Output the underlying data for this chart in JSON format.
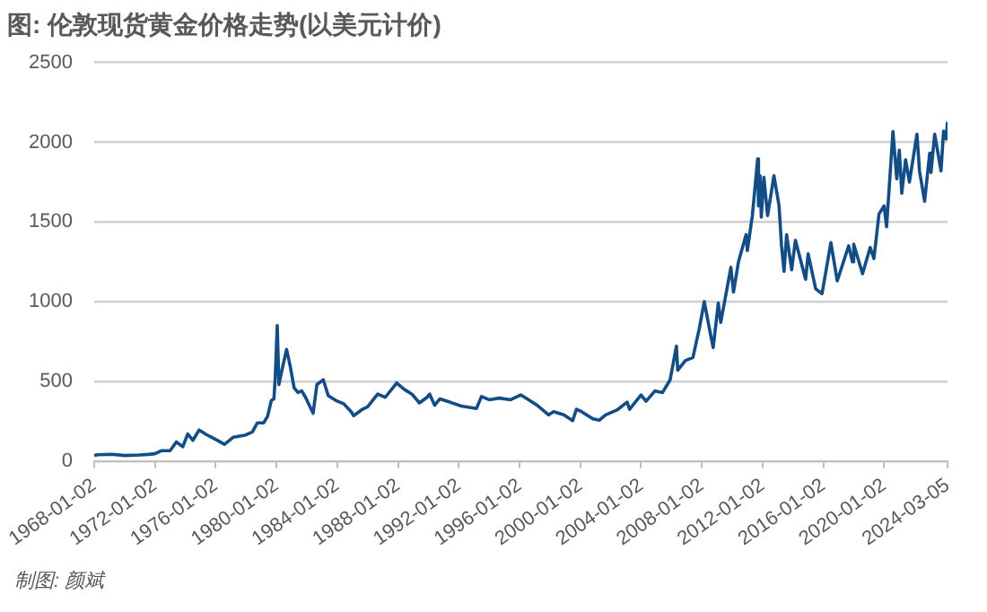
{
  "chart_data": {
    "type": "line",
    "title": "图: 伦敦现货黄金价格走势(以美元计价)",
    "annotations": [
      "制图: 颜斌"
    ],
    "x": [
      "1968-01-02",
      "1968-04",
      "1969-03",
      "1970-01",
      "1971-01",
      "1971-08",
      "1972-01",
      "1972-06",
      "1973-01",
      "1973-06",
      "1973-11",
      "1974-03",
      "1974-07",
      "1974-12",
      "1975-06",
      "1975-12",
      "1976-08",
      "1977-03",
      "1977-12",
      "1978-06",
      "1978-10",
      "1979-03",
      "1979-06",
      "1979-09",
      "1979-11",
      "1979-12",
      "1980-01-21",
      "1980-03",
      "1980-04",
      "1980-09",
      "1980-12",
      "1981-03",
      "1981-06",
      "1981-09",
      "1981-12",
      "1982-06",
      "1982-09",
      "1983-02",
      "1983-06",
      "1983-12",
      "1984-06",
      "1984-12",
      "1985-02",
      "1985-09",
      "1986-01",
      "1986-09",
      "1987-03",
      "1987-12",
      "1988-06",
      "1988-12",
      "1989-06",
      "1989-12",
      "1990-02",
      "1990-06",
      "1990-10",
      "1991-06",
      "1992-03",
      "1993-03",
      "1993-07",
      "1994-01",
      "1994-09",
      "1995-06",
      "1996-02",
      "1996-09",
      "1997-03",
      "1997-12",
      "1998-04",
      "1998-12",
      "1999-07",
      "1999-10",
      "2000-02",
      "2000-11",
      "2001-04",
      "2001-09",
      "2002-06",
      "2003-02",
      "2003-04",
      "2004-01",
      "2004-05",
      "2004-12",
      "2005-06",
      "2005-12",
      "2006-05",
      "2006-06",
      "2006-12",
      "2007-06",
      "2007-11",
      "2008-03",
      "2008-08",
      "2008-10",
      "2009-02",
      "2009-04",
      "2009-12",
      "2010-02",
      "2010-06",
      "2010-12",
      "2011-01",
      "2011-05",
      "2011-09-05",
      "2011-09-26",
      "2011-11",
      "2011-12",
      "2012-02",
      "2012-05",
      "2012-10",
      "2013-02",
      "2013-04",
      "2013-06",
      "2013-08",
      "2013-12",
      "2014-03",
      "2014-11",
      "2015-01",
      "2015-07",
      "2015-12",
      "2016-07",
      "2016-12",
      "2017-09",
      "2017-12",
      "2018-01",
      "2018-08",
      "2019-02",
      "2019-05",
      "2019-09",
      "2020-01",
      "2020-03",
      "2020-08",
      "2020-11",
      "2021-01",
      "2021-03",
      "2021-06",
      "2021-09",
      "2022-03",
      "2022-05",
      "2022-09",
      "2023-01",
      "2023-02",
      "2023-05",
      "2023-10",
      "2023-12",
      "2024-02",
      "2024-03-05"
    ],
    "series": [
      {
        "color": "#124d85",
        "values": [
          35,
          40,
          43,
          35,
          38,
          42,
          46,
          65,
          65,
          120,
          90,
          170,
          130,
          195,
          165,
          140,
          105,
          150,
          162,
          183,
          240,
          240,
          280,
          380,
          390,
          510,
          850,
          480,
          520,
          700,
          590,
          460,
          430,
          440,
          400,
          300,
          480,
          510,
          410,
          380,
          360,
          310,
          285,
          325,
          340,
          420,
          400,
          490,
          450,
          420,
          365,
          400,
          420,
          350,
          390,
          370,
          345,
          330,
          405,
          385,
          395,
          385,
          415,
          380,
          350,
          290,
          310,
          290,
          253,
          325,
          310,
          265,
          256,
          290,
          320,
          370,
          325,
          415,
          375,
          440,
          430,
          510,
          720,
          570,
          630,
          650,
          830,
          1000,
          790,
          712,
          990,
          870,
          1215,
          1060,
          1250,
          1420,
          1320,
          1540,
          1895,
          1600,
          1790,
          1530,
          1780,
          1540,
          1790,
          1600,
          1350,
          1190,
          1420,
          1200,
          1385,
          1140,
          1300,
          1080,
          1050,
          1370,
          1130,
          1350,
          1250,
          1360,
          1175,
          1340,
          1270,
          1550,
          1600,
          1470,
          2067,
          1770,
          1950,
          1680,
          1890,
          1750,
          2050,
          1820,
          1630,
          1930,
          1810,
          2050,
          1820,
          2070,
          2020,
          2128
        ]
      }
    ],
    "xlim": [
      "1968-01-02",
      "2024-03-05"
    ],
    "xticks": [
      "1968-01-02",
      "1972-01-02",
      "1976-01-02",
      "1980-01-02",
      "1984-01-02",
      "1988-01-02",
      "1992-01-02",
      "1996-01-02",
      "2000-01-02",
      "2004-01-02",
      "2008-01-02",
      "2012-01-02",
      "2016-01-02",
      "2020-01-02",
      "2024-03-05"
    ],
    "ylim": [
      0,
      2500
    ],
    "yticks": [
      0,
      500,
      1000,
      1500,
      2000,
      2500
    ],
    "grid": "y",
    "legend": false
  }
}
